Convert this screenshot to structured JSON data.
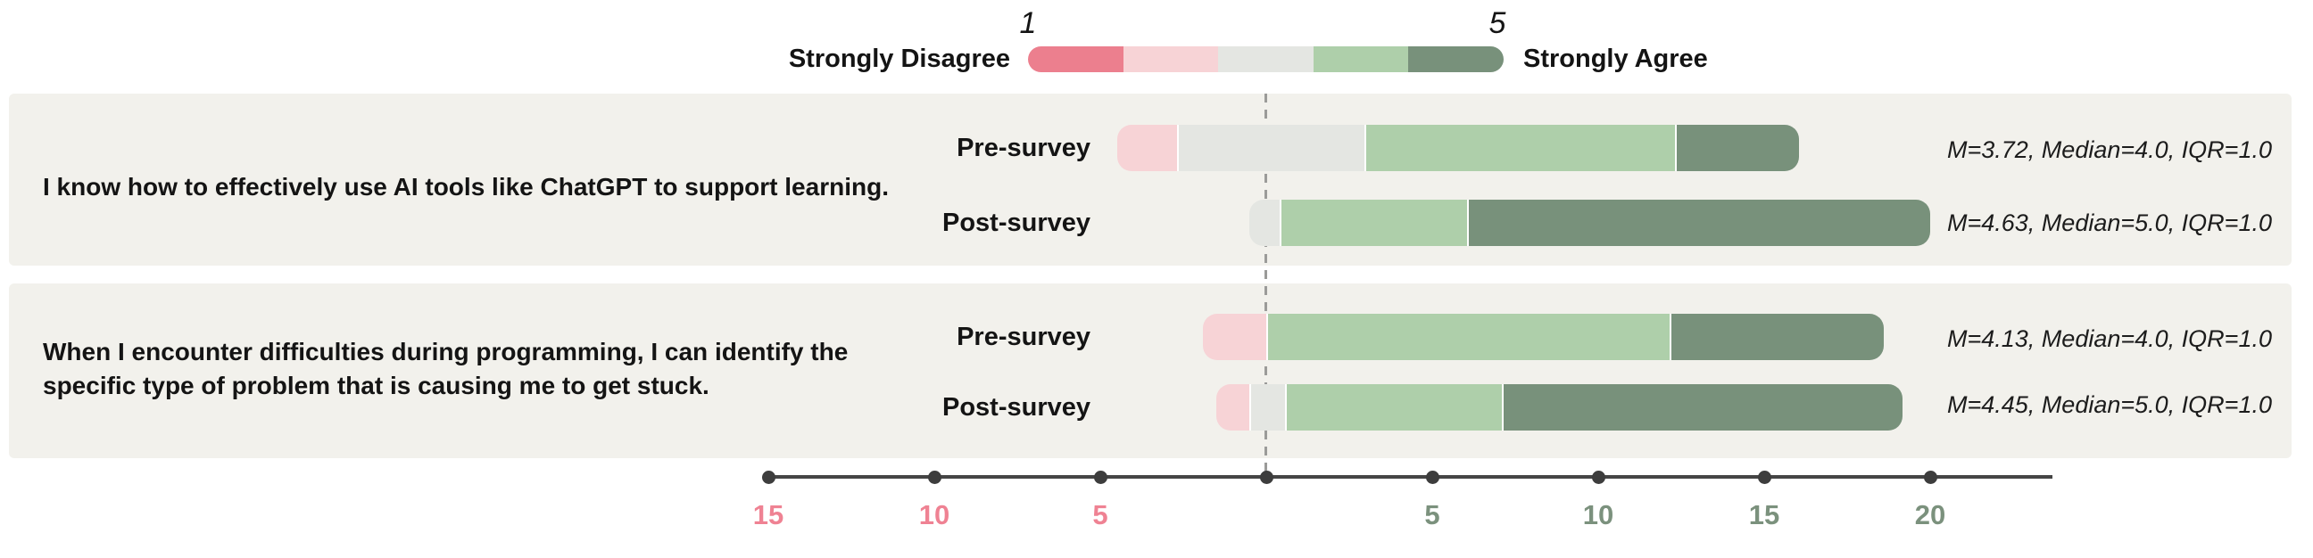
{
  "colors": {
    "background": "#ffffff",
    "panel_background": "#f2f1ec",
    "axis_line": "#454545",
    "tick_dot": "#3d3d3d",
    "zero_dash_line": "#9b9b99",
    "negative_tick_label": "#ef8293",
    "positive_tick_label": "#7b917d",
    "text": "#141414",
    "category_colors": {
      "strongly_disagree": "#ec7f8e",
      "disagree": "#f7d3d6",
      "neutral": "#e4e6e2",
      "agree": "#aecfaa",
      "strongly_agree": "#78917b"
    }
  },
  "legend": {
    "left_label": "Strongly Disagree",
    "right_label": "Strongly Agree",
    "min_label": "1",
    "max_label": "5",
    "segment_colors": [
      "#ec7f8e",
      "#f7d3d6",
      "#e4e6e2",
      "#aecfaa",
      "#78917b"
    ],
    "segment_names": [
      "strongly-disagree",
      "disagree",
      "neutral",
      "agree",
      "strongly-agree"
    ]
  },
  "chart_data": {
    "type": "diverging_stacked_bar",
    "subtype": "likert_pre_post_survey",
    "likert_scale": {
      "min": 1,
      "max": 5,
      "min_meaning": "Strongly Disagree",
      "max_meaning": "Strongly Agree"
    },
    "legend_position": "top-center",
    "grid": false,
    "axis": {
      "orientation": "horizontal",
      "zero_reference_line": true,
      "ticks": [
        {
          "value": -15,
          "label": "15",
          "side": "negative"
        },
        {
          "value": -10,
          "label": "10",
          "side": "negative"
        },
        {
          "value": -5,
          "label": "5",
          "side": "negative"
        },
        {
          "value": 0,
          "label": "",
          "side": "zero"
        },
        {
          "value": 5,
          "label": "5",
          "side": "positive"
        },
        {
          "value": 10,
          "label": "10",
          "side": "positive"
        },
        {
          "value": 15,
          "label": "15",
          "side": "positive"
        },
        {
          "value": 20,
          "label": "20",
          "side": "positive"
        }
      ],
      "xlim": [
        -15.2,
        23.6
      ]
    },
    "questions": [
      {
        "text": "I know how to effectively use AI tools like ChatGPT to support learning.",
        "rows": [
          {
            "label": "Pre-survey",
            "start": -4.5,
            "segments": [
              {
                "category": "disagree",
                "value": 1.8
              },
              {
                "category": "neutral",
                "value": 5.6
              },
              {
                "category": "agree",
                "value": 9.3
              },
              {
                "category": "strongly_agree",
                "value": 3.7
              }
            ],
            "mean": 3.72,
            "median": 4.0,
            "iqr": 1.0,
            "stats": "M=3.72, Median=4.0, IQR=1.0"
          },
          {
            "label": "Post-survey",
            "start": -0.5,
            "segments": [
              {
                "category": "neutral",
                "value": 0.9
              },
              {
                "category": "agree",
                "value": 5.6
              },
              {
                "category": "strongly_agree",
                "value": 13.9
              }
            ],
            "mean": 4.63,
            "median": 5.0,
            "iqr": 1.0,
            "stats": "M=4.63, Median=5.0, IQR=1.0"
          }
        ]
      },
      {
        "text": "When I encounter difficulties during programming, I can identify the specific type of problem that is causing me to get stuck.",
        "rows": [
          {
            "label": "Pre-survey",
            "start": -1.9,
            "segments": [
              {
                "category": "disagree",
                "value": 1.9
              },
              {
                "category": "agree",
                "value": 12.1
              },
              {
                "category": "strongly_agree",
                "value": 6.4
              }
            ],
            "mean": 4.13,
            "median": 4.0,
            "iqr": 1.0,
            "stats": "M=4.13, Median=4.0, IQR=1.0"
          },
          {
            "label": "Post-survey",
            "start": -1.5,
            "segments": [
              {
                "category": "disagree",
                "value": 1.0
              },
              {
                "category": "neutral",
                "value": 1.0
              },
              {
                "category": "agree",
                "value": 6.5
              },
              {
                "category": "strongly_agree",
                "value": 12.0
              }
            ],
            "mean": 4.45,
            "median": 5.0,
            "iqr": 1.0,
            "stats": "M=4.45, Median=5.0, IQR=1.0"
          }
        ]
      }
    ]
  }
}
